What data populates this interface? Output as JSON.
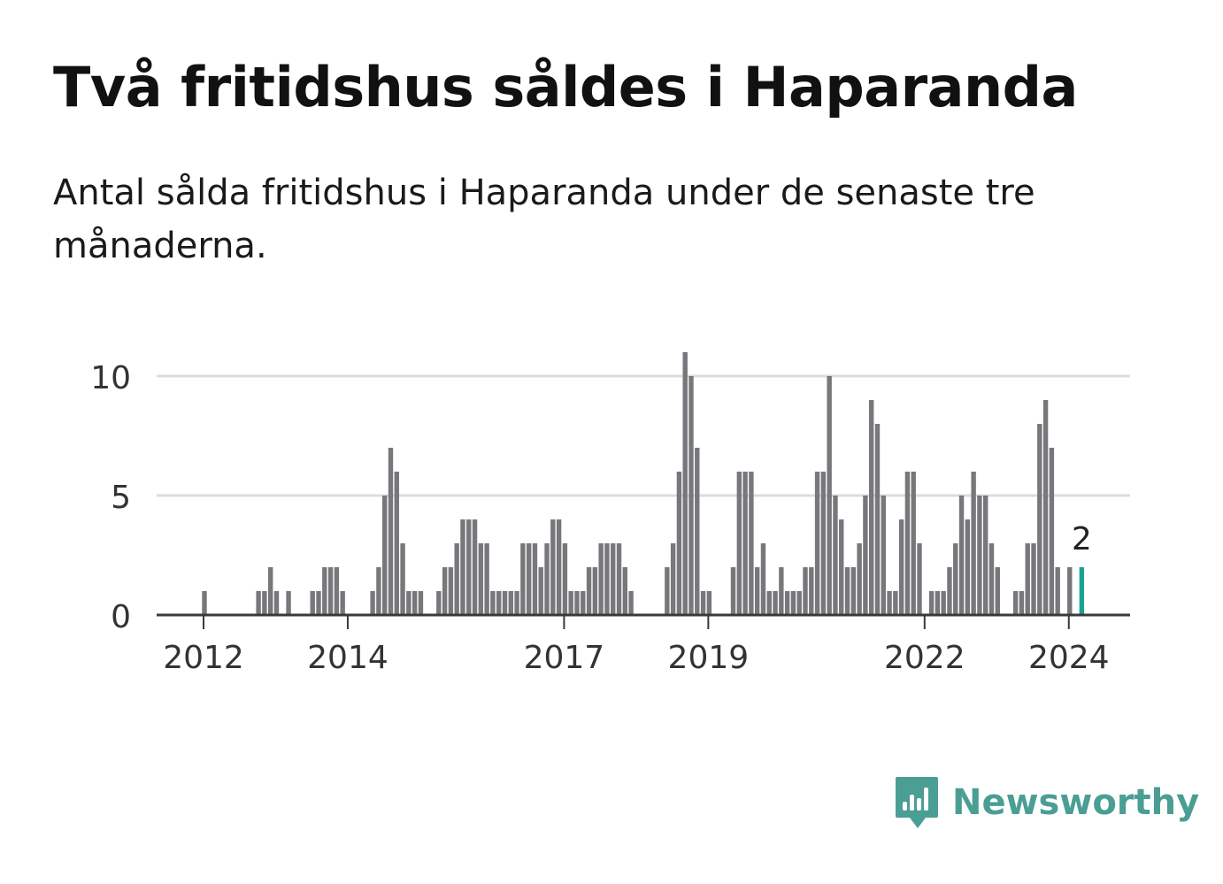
{
  "title": "Två fritidshus såldes i Haparanda",
  "subtitle": "Antal sålda fritidshus i Haparanda under de senaste tre månaderna.",
  "brand": {
    "name": "Newsworthy",
    "color": "#4a9e94",
    "icon": "chat-bubble-chart-icon"
  },
  "colors": {
    "bar": "#78777b",
    "highlight": "#1aa393",
    "grid": "#dcdcdc",
    "axis": "#3a3a3a"
  },
  "chart_data": {
    "type": "bar",
    "title": "Två fritidshus såldes i Haparanda",
    "xlabel": "",
    "ylabel": "",
    "ylim": [
      0,
      11
    ],
    "grid": true,
    "y_ticks": [
      0,
      5,
      10
    ],
    "x_tick_labels": [
      {
        "label": "2012",
        "index": 0
      },
      {
        "label": "2014",
        "index": 24
      },
      {
        "label": "2017",
        "index": 60
      },
      {
        "label": "2019",
        "index": 84
      },
      {
        "label": "2022",
        "index": 120
      },
      {
        "label": "2024",
        "index": 144
      }
    ],
    "start": "2012-01",
    "values": [
      1,
      0,
      0,
      0,
      0,
      0,
      0,
      0,
      0,
      1,
      1,
      2,
      1,
      0,
      1,
      0,
      0,
      0,
      1,
      1,
      2,
      2,
      2,
      1,
      0,
      0,
      0,
      0,
      1,
      2,
      5,
      7,
      6,
      3,
      1,
      1,
      1,
      0,
      0,
      1,
      2,
      2,
      3,
      4,
      4,
      4,
      3,
      3,
      1,
      1,
      1,
      1,
      1,
      3,
      3,
      3,
      2,
      3,
      4,
      4,
      3,
      1,
      1,
      1,
      2,
      2,
      3,
      3,
      3,
      3,
      2,
      1,
      0,
      0,
      0,
      0,
      0,
      2,
      3,
      6,
      11,
      10,
      7,
      1,
      1,
      0,
      0,
      0,
      2,
      6,
      6,
      6,
      2,
      3,
      1,
      1,
      2,
      1,
      1,
      1,
      2,
      2,
      6,
      6,
      10,
      5,
      4,
      2,
      2,
      3,
      5,
      9,
      8,
      5,
      1,
      1,
      4,
      6,
      6,
      3,
      0,
      1,
      1,
      1,
      2,
      3,
      5,
      4,
      6,
      5,
      5,
      3,
      2,
      0,
      0,
      1,
      1,
      3,
      3,
      8,
      9,
      7,
      2,
      0,
      2
    ],
    "highlight": {
      "index": 146,
      "value": 2,
      "label": "2"
    }
  }
}
